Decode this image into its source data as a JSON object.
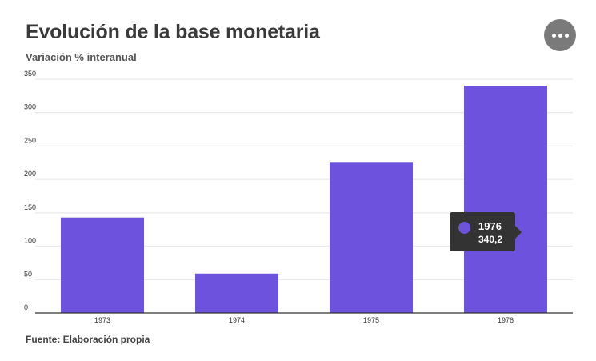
{
  "header": {
    "title": "Evolución de la base monetaria",
    "subtitle": "Variación % interanual"
  },
  "menu": {
    "icon": "more-horizontal-icon"
  },
  "footer": {
    "source": "Fuente: Elaboración propia"
  },
  "tooltip": {
    "year": "1976",
    "value": "340,2",
    "color": "#6c52dc"
  },
  "chart_data": {
    "type": "bar",
    "categories": [
      "1973",
      "1974",
      "1975",
      "1976"
    ],
    "values": [
      143,
      59,
      225,
      340.2
    ],
    "ylim": [
      0,
      350
    ],
    "yticks": [
      0,
      50,
      100,
      150,
      200,
      250,
      300,
      350
    ],
    "ytick_labels": [
      "0",
      "50",
      "100",
      "150",
      "200",
      "250",
      "300",
      "350"
    ],
    "bar_color": "#6c52dc",
    "grid": true,
    "legend": "none"
  }
}
